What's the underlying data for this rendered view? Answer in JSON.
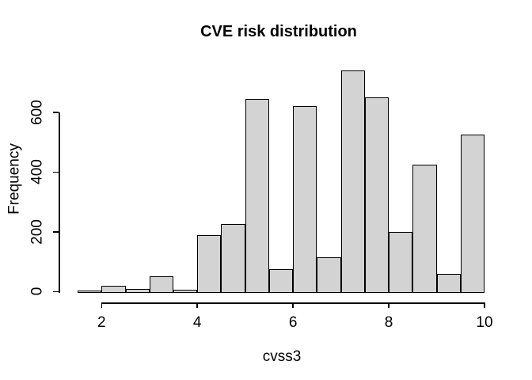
{
  "chart_data": {
    "type": "bar",
    "subtype": "histogram",
    "title": "CVE risk distribution",
    "xlabel": "cvss3",
    "ylabel": "Frequency",
    "bin_edges": [
      1.5,
      2.0,
      2.5,
      3.0,
      3.5,
      4.0,
      4.5,
      5.0,
      5.5,
      6.0,
      6.5,
      7.0,
      7.5,
      8.0,
      8.5,
      9.0,
      9.5,
      10.0
    ],
    "counts": [
      3,
      20,
      10,
      52,
      7,
      190,
      225,
      645,
      75,
      620,
      115,
      740,
      650,
      200,
      425,
      58,
      525
    ],
    "x_ticks": [
      2,
      4,
      6,
      8,
      10
    ],
    "y_ticks": [
      0,
      200,
      400,
      600
    ],
    "xlim": [
      1.5,
      10
    ],
    "ylim": [
      0,
      740
    ],
    "grid": false,
    "legend": null,
    "bar_fill": "#d3d3d3",
    "bar_border": "#000000",
    "axis_color": "#000000",
    "text_color": "#000000",
    "background": "#ffffff"
  }
}
